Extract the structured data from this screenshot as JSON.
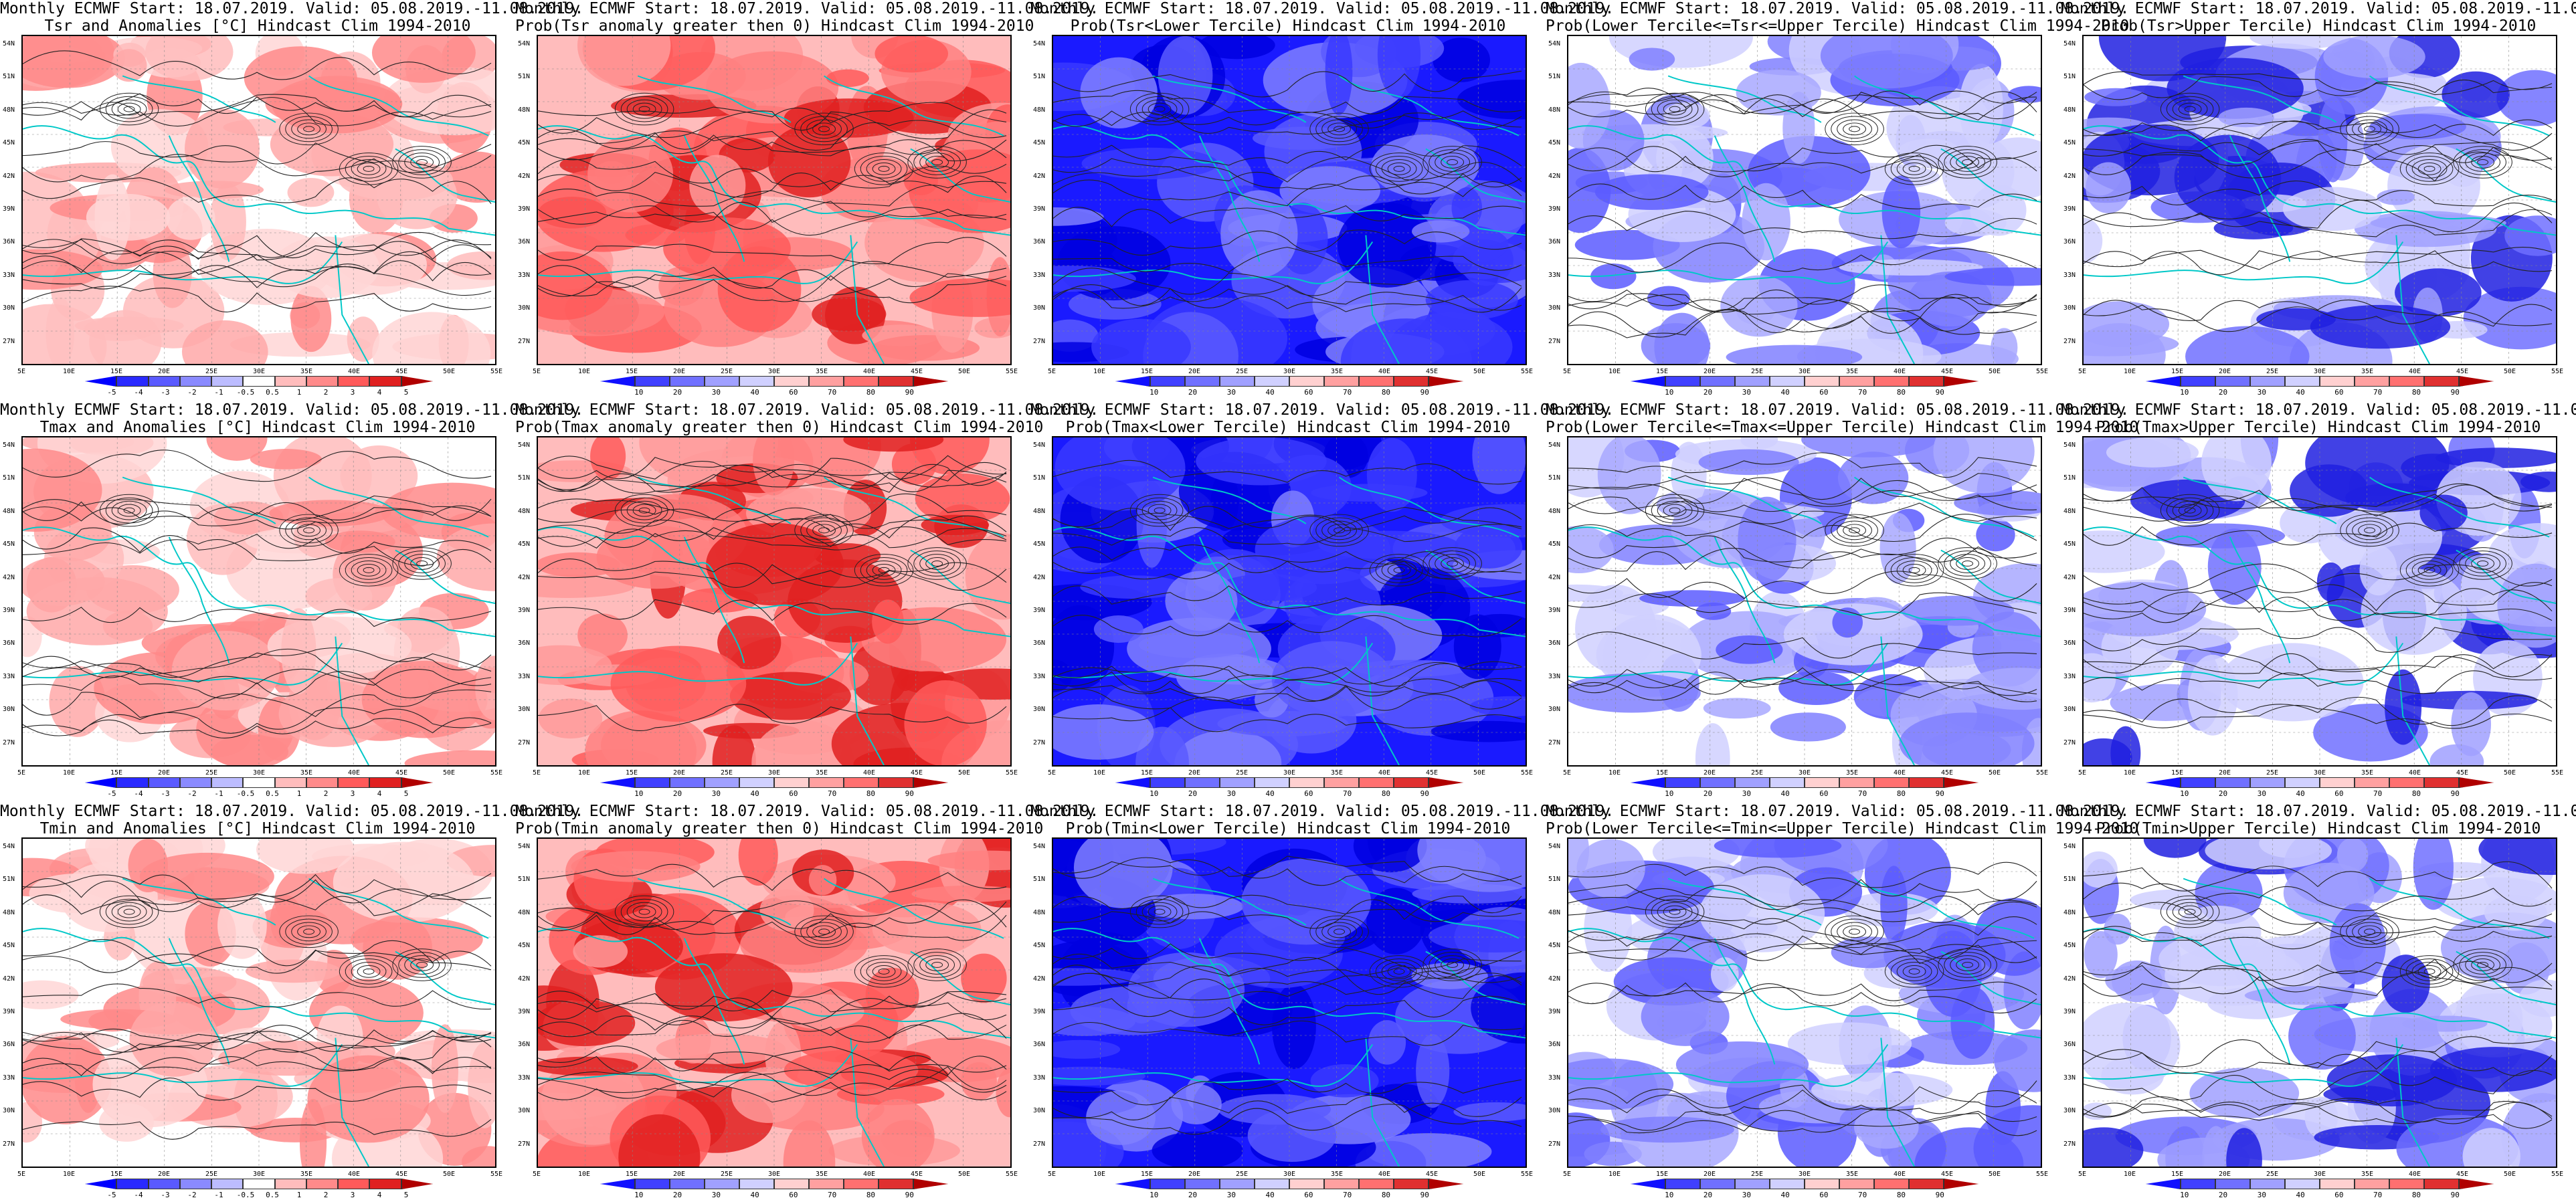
{
  "header_common": "Monthly ECMWF Start: 18.07.2019. Valid: 05.08.2019.-11.08.2019.",
  "lat_labels": [
    "54N",
    "51N",
    "48N",
    "45N",
    "42N",
    "39N",
    "36N",
    "33N",
    "30N",
    "27N"
  ],
  "lon_labels": [
    "5E",
    "10E",
    "15E",
    "20E",
    "25E",
    "30E",
    "35E",
    "40E",
    "45E",
    "50E",
    "55E"
  ],
  "colors": {
    "anomaly": [
      "#0000ff",
      "#2a2aff",
      "#5a5aff",
      "#8a8aff",
      "#bcbcff",
      "#ffffff",
      "#ffbcbc",
      "#ff8a8a",
      "#ff5a5a",
      "#e02020",
      "#b00000"
    ],
    "prob": [
      "#1010ff",
      "#4040ff",
      "#7070ff",
      "#a0a0ff",
      "#d0d0ff",
      "#ffd0d0",
      "#ffa0a0",
      "#ff7070",
      "#e03030",
      "#b00000"
    ],
    "land_outline": "#00c8c8",
    "contour": "#222222"
  },
  "anomaly_ticks": [
    "-5",
    "-4",
    "-3",
    "-2",
    "-1",
    "-0.5",
    "0.5",
    "1",
    "2",
    "3",
    "4",
    "5"
  ],
  "prob_ticks": [
    "10",
    "20",
    "30",
    "40",
    "60",
    "70",
    "80",
    "90"
  ],
  "panels": [
    {
      "title": "Tsr and Anomalies [°C] Hindcast Clim 1994-2010",
      "scale": "anomaly",
      "tone": "warm-light",
      "colorbar": true
    },
    {
      "title": "Prob(Tsr anomaly greater then 0) Hindcast Clim 1994-2010",
      "scale": "prob",
      "tone": "warm",
      "colorbar": true
    },
    {
      "title": "Prob(Tsr<Lower Tercile) Hindcast Clim 1994-2010",
      "scale": "prob",
      "tone": "cold-strong",
      "colorbar": true
    },
    {
      "title": "Prob(Lower Tercile<=Tsr<=Upper Tercile) Hindcast Clim 1994-2010",
      "scale": "prob",
      "tone": "cold-light",
      "colorbar": true
    },
    {
      "title": "Prob(Tsr>Upper Tercile) Hindcast Clim 1994-2010",
      "scale": "prob",
      "tone": "cold-mixed",
      "colorbar": true
    },
    {
      "title": "Tmax and Anomalies [°C] Hindcast Clim 1994-2010",
      "scale": "anomaly",
      "tone": "warm-light",
      "colorbar": true
    },
    {
      "title": "Prob(Tmax anomaly greater then 0) Hindcast Clim 1994-2010",
      "scale": "prob",
      "tone": "warm",
      "colorbar": true
    },
    {
      "title": "Prob(Tmax<Lower Tercile) Hindcast Clim 1994-2010",
      "scale": "prob",
      "tone": "cold-strong",
      "colorbar": true
    },
    {
      "title": "Prob(Lower Tercile<=Tmax<=Upper Tercile) Hindcast Clim 1994-2010",
      "scale": "prob",
      "tone": "cold-light",
      "colorbar": true
    },
    {
      "title": "Prob(Tmax>Upper Tercile) Hindcast Clim 1994-2010",
      "scale": "prob",
      "tone": "cold-mixed",
      "colorbar": true
    },
    {
      "title": "Tmin and Anomalies [°C] Hindcast Clim 1994-2010",
      "scale": "anomaly",
      "tone": "warm-light",
      "colorbar": true
    },
    {
      "title": "Prob(Tmin anomaly greater then 0) Hindcast Clim 1994-2010",
      "scale": "prob",
      "tone": "warm",
      "colorbar": true
    },
    {
      "title": "Prob(Tmin<Lower Tercile) Hindcast Clim 1994-2010",
      "scale": "prob",
      "tone": "cold-strong",
      "colorbar": true
    },
    {
      "title": "Prob(Lower Tercile<=Tmin<=Upper Tercile) Hindcast Clim 1994-2010",
      "scale": "prob",
      "tone": "cold-light",
      "colorbar": true
    },
    {
      "title": "Prob(Tmin>Upper Tercile) Hindcast Clim 1994-2010",
      "scale": "prob",
      "tone": "cold-mixed",
      "colorbar": true
    }
  ]
}
